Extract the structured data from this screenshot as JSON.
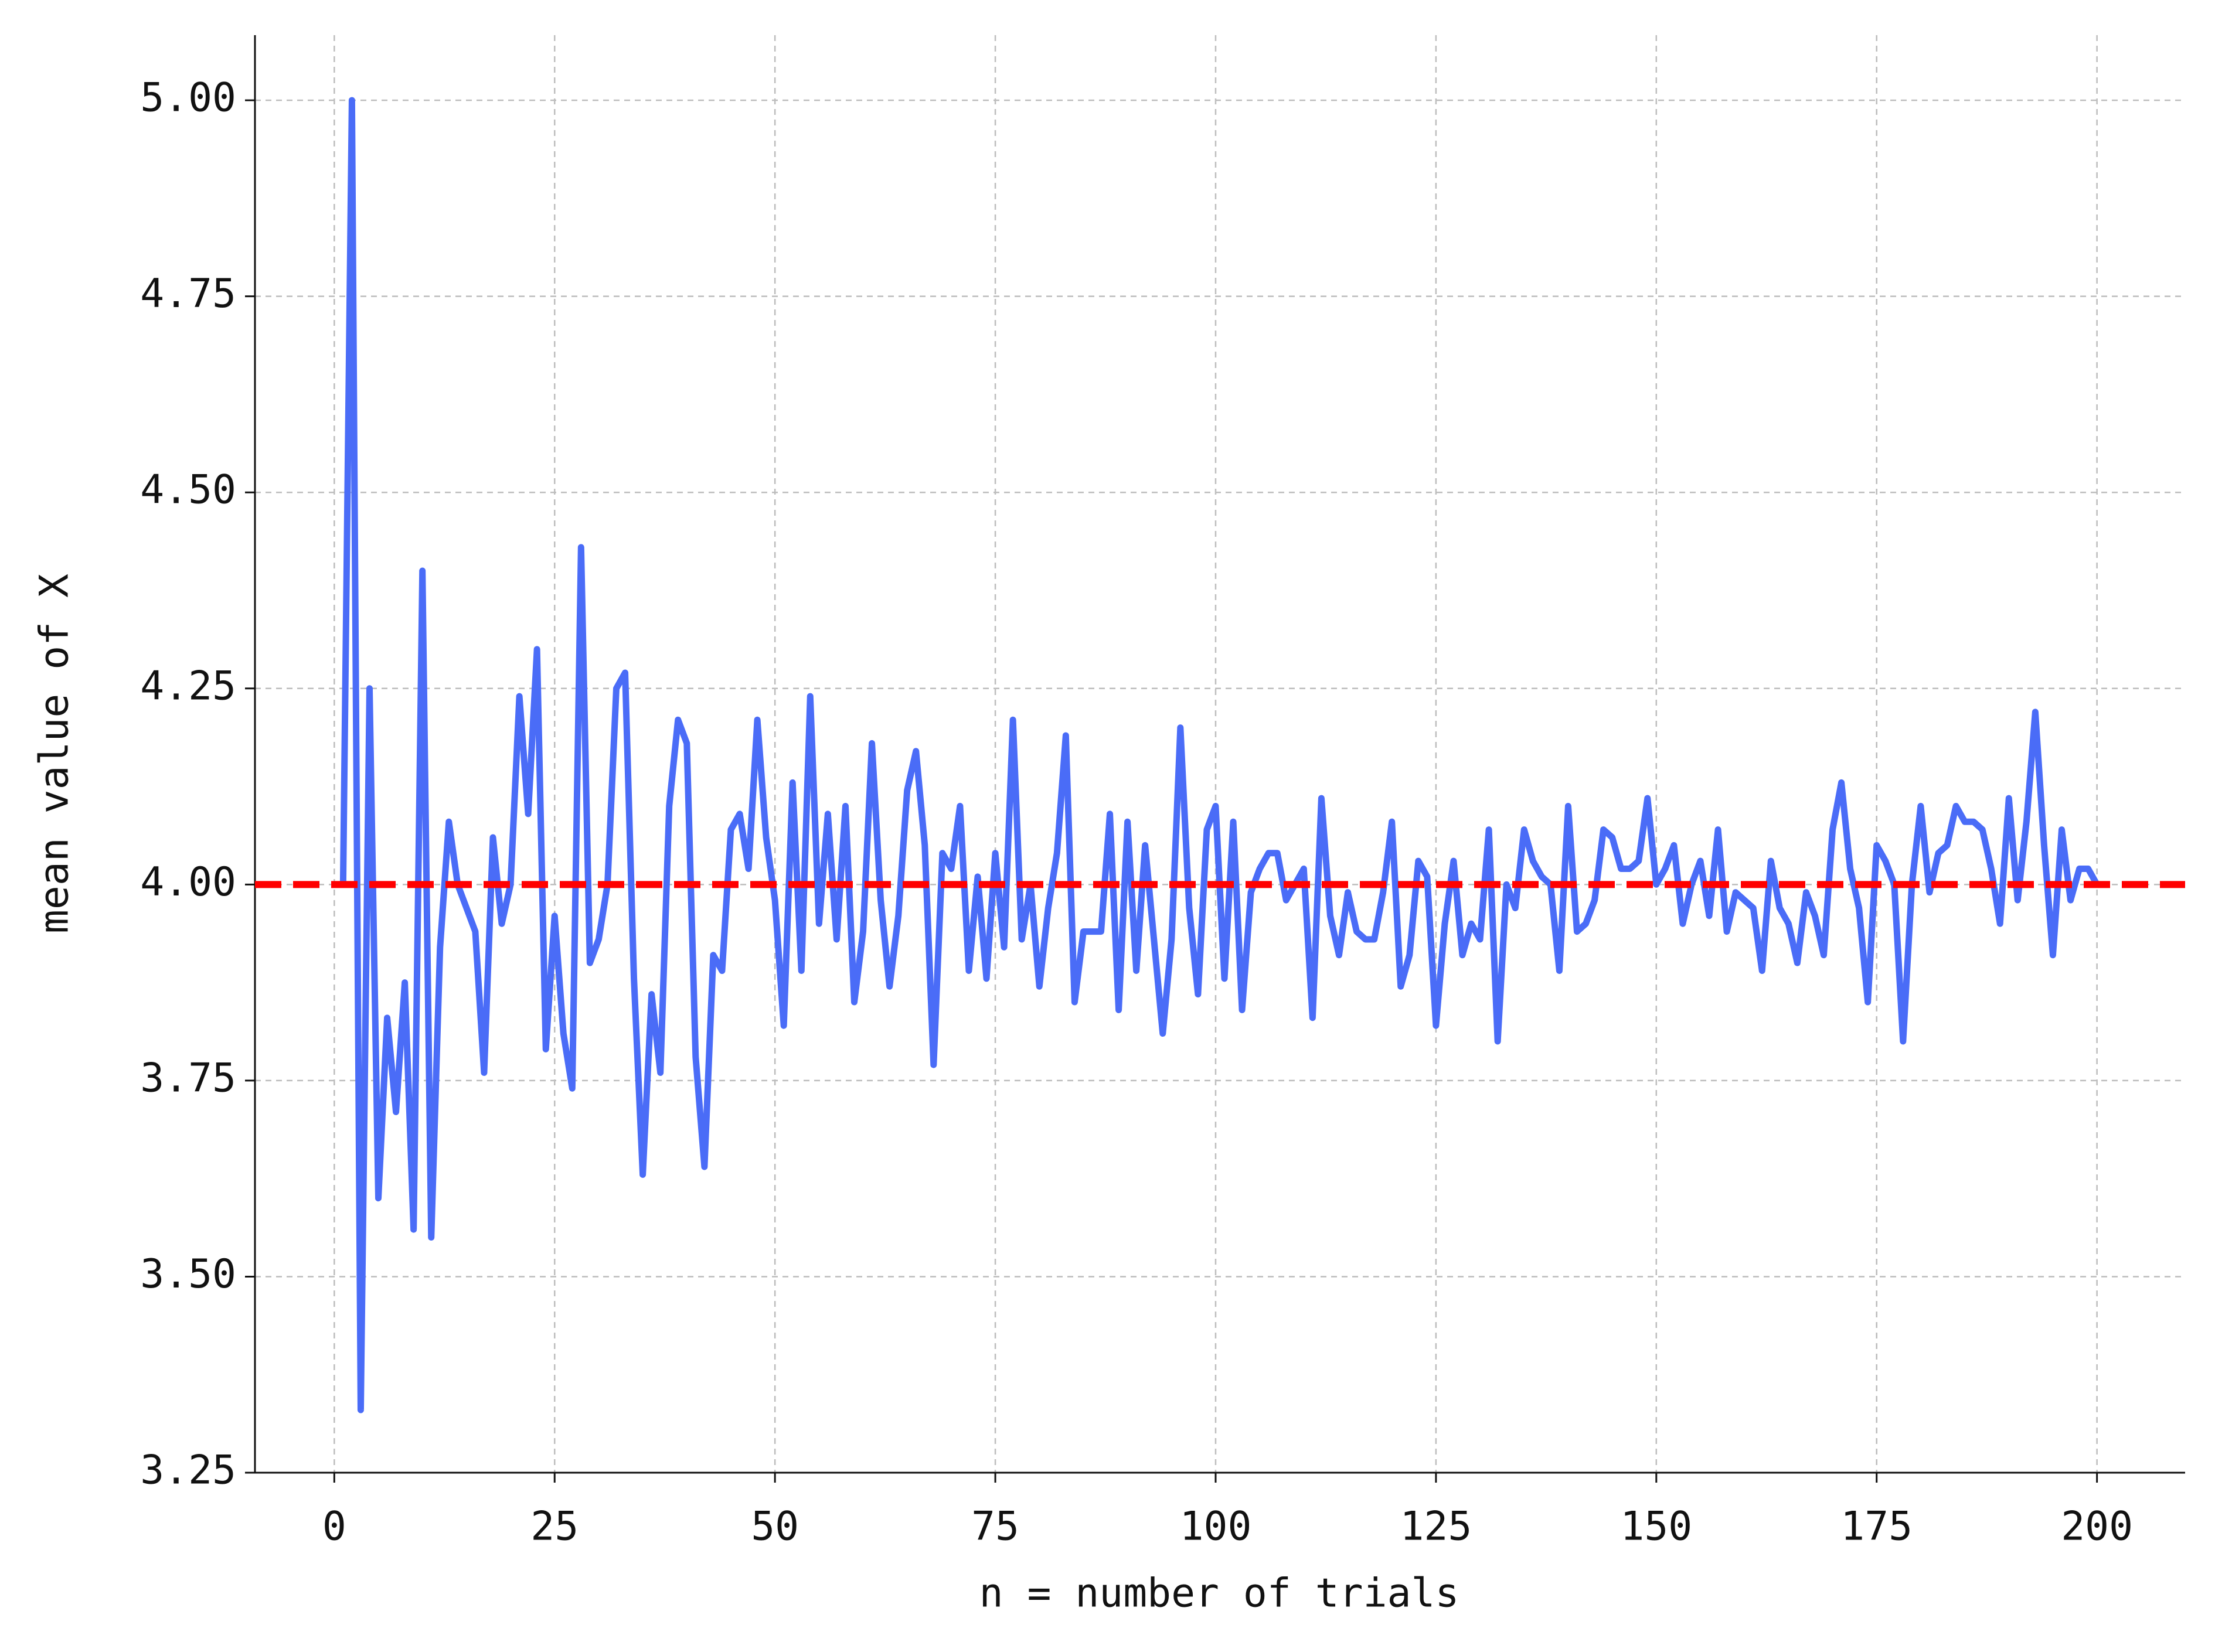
{
  "chart_data": {
    "type": "line",
    "xlabel": "n = number of trials",
    "ylabel": "mean value of X",
    "x": [
      1,
      2,
      3,
      4,
      5,
      6,
      7,
      8,
      9,
      10,
      11,
      12,
      13,
      14,
      15,
      16,
      17,
      18,
      19,
      20,
      21,
      22,
      23,
      24,
      25,
      26,
      27,
      28,
      29,
      30,
      31,
      32,
      33,
      34,
      35,
      36,
      37,
      38,
      39,
      40,
      41,
      42,
      43,
      44,
      45,
      46,
      47,
      48,
      49,
      50,
      51,
      52,
      53,
      54,
      55,
      56,
      57,
      58,
      59,
      60,
      61,
      62,
      63,
      64,
      65,
      66,
      67,
      68,
      69,
      70,
      71,
      72,
      73,
      74,
      75,
      76,
      77,
      78,
      79,
      80,
      81,
      82,
      83,
      84,
      85,
      86,
      87,
      88,
      89,
      90,
      91,
      92,
      93,
      94,
      95,
      96,
      97,
      98,
      99,
      100,
      101,
      102,
      103,
      104,
      105,
      106,
      107,
      108,
      109,
      110,
      111,
      112,
      113,
      114,
      115,
      116,
      117,
      118,
      119,
      120,
      121,
      122,
      123,
      124,
      125,
      126,
      127,
      128,
      129,
      130,
      131,
      132,
      133,
      134,
      135,
      136,
      137,
      138,
      139,
      140,
      141,
      142,
      143,
      144,
      145,
      146,
      147,
      148,
      149,
      150,
      151,
      152,
      153,
      154,
      155,
      156,
      157,
      158,
      159,
      160,
      161,
      162,
      163,
      164,
      165,
      166,
      167,
      168,
      169,
      170,
      171,
      172,
      173,
      174,
      175,
      176,
      177,
      178,
      179,
      180,
      181,
      182,
      183,
      184,
      185,
      186,
      187,
      188,
      189,
      190,
      191,
      192,
      193,
      194,
      195,
      196,
      197,
      198,
      199,
      200
    ],
    "values": [
      4.0,
      5.0,
      3.33,
      4.25,
      3.6,
      3.83,
      3.71,
      3.875,
      3.56,
      4.4,
      3.55,
      3.92,
      4.08,
      4.0,
      3.97,
      3.94,
      3.76,
      4.06,
      3.95,
      4.0,
      4.24,
      4.09,
      4.3,
      3.79,
      3.96,
      3.81,
      3.74,
      4.43,
      3.9,
      3.93,
      4.0,
      4.25,
      4.27,
      3.88,
      3.63,
      3.86,
      3.76,
      4.1,
      4.21,
      4.18,
      3.78,
      3.64,
      3.91,
      3.89,
      4.07,
      4.09,
      4.02,
      4.21,
      4.06,
      3.98,
      3.82,
      4.13,
      3.89,
      4.24,
      3.95,
      4.09,
      3.93,
      4.1,
      3.85,
      3.94,
      4.18,
      3.98,
      3.87,
      3.96,
      4.12,
      4.17,
      4.05,
      3.77,
      4.04,
      4.02,
      4.1,
      3.89,
      4.01,
      3.88,
      4.04,
      3.92,
      4.21,
      3.93,
      4.0,
      3.87,
      3.97,
      4.04,
      4.19,
      3.85,
      3.94,
      3.94,
      3.94,
      4.09,
      3.84,
      4.08,
      3.89,
      4.05,
      3.93,
      3.81,
      3.93,
      4.2,
      3.97,
      3.86,
      4.07,
      4.1,
      3.88,
      4.08,
      3.84,
      3.99,
      4.02,
      4.04,
      4.04,
      3.98,
      4.0,
      4.02,
      3.83,
      4.11,
      3.96,
      3.91,
      3.99,
      3.94,
      3.93,
      3.93,
      3.99,
      4.08,
      3.87,
      3.91,
      4.03,
      4.01,
      3.82,
      3.95,
      4.03,
      3.91,
      3.95,
      3.93,
      4.07,
      3.8,
      4.0,
      3.97,
      4.07,
      4.03,
      4.01,
      4.0,
      3.89,
      4.1,
      3.94,
      3.95,
      3.98,
      4.07,
      4.06,
      4.02,
      4.02,
      4.03,
      4.11,
      4.0,
      4.02,
      4.05,
      3.95,
      4.0,
      4.03,
      3.96,
      4.07,
      3.94,
      3.99,
      3.98,
      3.97,
      3.89,
      4.03,
      3.97,
      3.95,
      3.9,
      3.99,
      3.96,
      3.91,
      4.07,
      4.13,
      4.02,
      3.97,
      3.85,
      4.05,
      4.03,
      4.0,
      3.8,
      4.0,
      4.1,
      3.99,
      4.04,
      4.05,
      4.1,
      4.08,
      4.08,
      4.07,
      4.02,
      3.95,
      4.11,
      3.98,
      4.08,
      4.22,
      4.05,
      3.91,
      4.07,
      3.98,
      4.02,
      4.02,
      4.0
    ],
    "color": "#4a6cf7",
    "reference_line": {
      "value": 4,
      "color": "#ff0000",
      "dashed": true
    },
    "xlim": [
      -9,
      210
    ],
    "ylim": [
      3.25,
      5.083
    ],
    "xticks": [
      0,
      25,
      50,
      75,
      100,
      125,
      150,
      175,
      200
    ],
    "yticks": [
      {
        "value": 3.25,
        "label": "3.25"
      },
      {
        "value": 3.5,
        "label": "3.50"
      },
      {
        "value": 3.75,
        "label": "3.75"
      },
      {
        "value": 4,
        "label": "4.00"
      },
      {
        "value": 4.25,
        "label": "4.25"
      },
      {
        "value": 4.5,
        "label": "4.50"
      },
      {
        "value": 4.75,
        "label": "4.75"
      },
      {
        "value": 5,
        "label": "5.00"
      }
    ],
    "grid": true,
    "grid_style": "dashed",
    "spines": [
      "left",
      "bottom"
    ]
  }
}
